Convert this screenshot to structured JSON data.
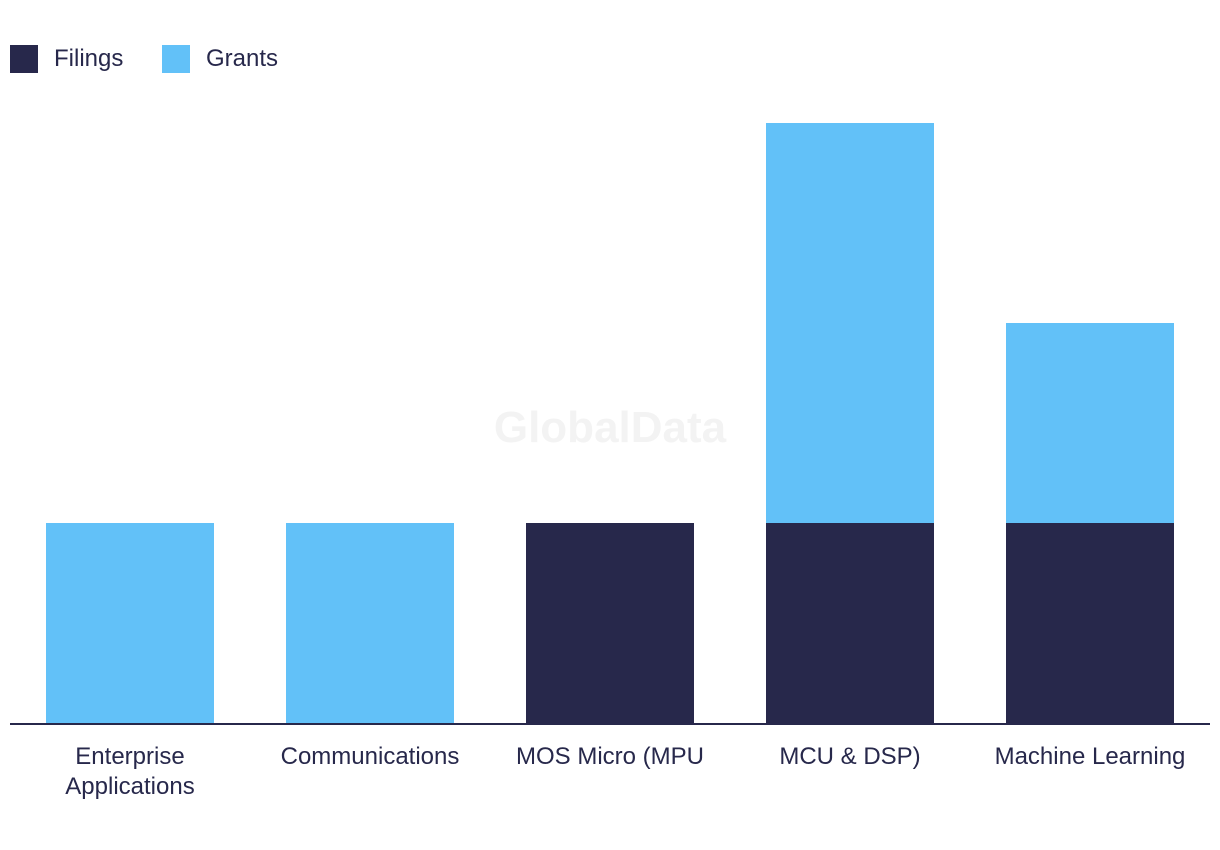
{
  "chart_data": {
    "type": "bar",
    "stacked": true,
    "title": "",
    "xlabel": "",
    "ylabel": "",
    "categories": [
      [
        "Enterprise",
        "Applications"
      ],
      [
        "Communications"
      ],
      [
        "MOS Micro (MPU"
      ],
      [
        "MCU & DSP)"
      ],
      [
        "Machine Learning"
      ]
    ],
    "series": [
      {
        "name": "Filings",
        "color": "#27284b",
        "values": [
          0,
          0,
          1,
          1,
          1
        ]
      },
      {
        "name": "Grants",
        "color": "#62c1f8",
        "values": [
          1,
          1,
          0,
          2,
          1
        ]
      }
    ],
    "ylim": [
      0,
      3
    ],
    "grid": false,
    "legend": "top-left",
    "watermark": "GlobalData"
  }
}
